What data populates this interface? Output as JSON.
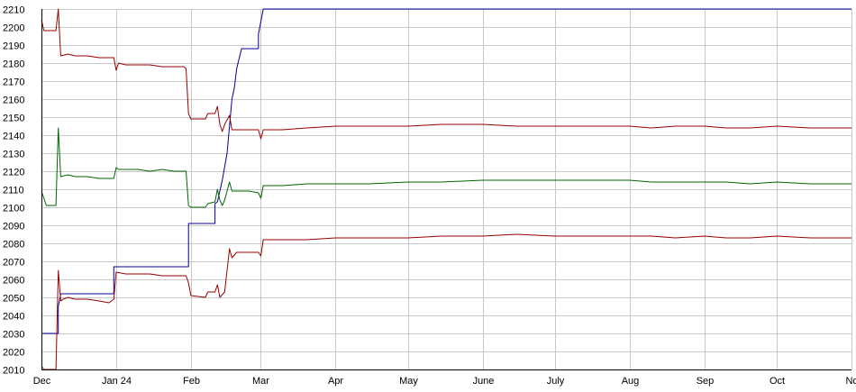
{
  "chart_data": {
    "type": "line",
    "title": "",
    "xlabel": "",
    "ylabel": "",
    "ylim": [
      2010,
      2210
    ],
    "yticks": [
      2010,
      2020,
      2030,
      2040,
      2050,
      2060,
      2070,
      2080,
      2090,
      2100,
      2110,
      2120,
      2130,
      2140,
      2150,
      2160,
      2170,
      2180,
      2190,
      2200,
      2210
    ],
    "xlim": [
      "2023-12-01",
      "2024-11-01"
    ],
    "xticks": [
      {
        "date": "2023-12-01",
        "label": "Dec"
      },
      {
        "date": "2024-01-01",
        "label": "Jan 24"
      },
      {
        "date": "2024-02-01",
        "label": "Feb"
      },
      {
        "date": "2024-03-01",
        "label": "Mar"
      },
      {
        "date": "2024-04-01",
        "label": "Apr"
      },
      {
        "date": "2024-05-01",
        "label": "May"
      },
      {
        "date": "2024-06-01",
        "label": "June"
      },
      {
        "date": "2024-07-01",
        "label": "July"
      },
      {
        "date": "2024-08-01",
        "label": "Aug"
      },
      {
        "date": "2024-09-01",
        "label": "Sep"
      },
      {
        "date": "2024-10-01",
        "label": "Oct"
      },
      {
        "date": "2024-11-01",
        "label": "No"
      }
    ],
    "grid": true,
    "legend": "none",
    "series": [
      {
        "color": "#000099",
        "points": [
          [
            "2023-12-01",
            2030
          ],
          [
            "2023-12-08",
            2030
          ],
          [
            "2023-12-08",
            2045
          ],
          [
            "2023-12-09",
            2052
          ],
          [
            "2023-12-31",
            2052
          ],
          [
            "2023-12-31",
            2067
          ],
          [
            "2024-01-31",
            2067
          ],
          [
            "2024-01-31",
            2091
          ],
          [
            "2024-02-11",
            2091
          ],
          [
            "2024-02-11",
            2102
          ],
          [
            "2024-02-12",
            2103
          ],
          [
            "2024-02-14",
            2115
          ],
          [
            "2024-02-16",
            2130
          ],
          [
            "2024-02-18",
            2160
          ],
          [
            "2024-02-19",
            2166
          ],
          [
            "2024-02-20",
            2177
          ],
          [
            "2024-02-22",
            2188
          ],
          [
            "2024-02-29",
            2188
          ],
          [
            "2024-02-29",
            2196
          ],
          [
            "2024-03-02",
            2210
          ],
          [
            "2024-11-01",
            2210
          ]
        ]
      },
      {
        "color": "#990000",
        "points": [
          [
            "2023-12-01",
            2204
          ],
          [
            "2023-12-02",
            2198
          ],
          [
            "2023-12-07",
            2198
          ],
          [
            "2023-12-08",
            2210
          ],
          [
            "2023-12-09",
            2184
          ],
          [
            "2023-12-12",
            2185
          ],
          [
            "2023-12-15",
            2184
          ],
          [
            "2023-12-20",
            2184
          ],
          [
            "2023-12-25",
            2183
          ],
          [
            "2023-12-29",
            2183
          ],
          [
            "2023-12-31",
            2183
          ],
          [
            "2024-01-01",
            2176
          ],
          [
            "2024-01-02",
            2180
          ],
          [
            "2024-01-05",
            2179
          ],
          [
            "2024-01-10",
            2179
          ],
          [
            "2024-01-15",
            2179
          ],
          [
            "2024-01-20",
            2178
          ],
          [
            "2024-01-25",
            2178
          ],
          [
            "2024-01-29",
            2178
          ],
          [
            "2024-01-30",
            2177
          ],
          [
            "2024-01-31",
            2152
          ],
          [
            "2024-02-01",
            2149
          ],
          [
            "2024-02-07",
            2149
          ],
          [
            "2024-02-08",
            2152
          ],
          [
            "2024-02-11",
            2152
          ],
          [
            "2024-02-12",
            2156
          ],
          [
            "2024-02-13",
            2146
          ],
          [
            "2024-02-14",
            2142
          ],
          [
            "2024-02-15",
            2146
          ],
          [
            "2024-02-17",
            2151
          ],
          [
            "2024-02-18",
            2143
          ],
          [
            "2024-02-25",
            2143
          ],
          [
            "2024-02-29",
            2143
          ],
          [
            "2024-03-01",
            2138
          ],
          [
            "2024-03-02",
            2143
          ],
          [
            "2024-03-10",
            2143
          ],
          [
            "2024-03-20",
            2144
          ],
          [
            "2024-04-01",
            2145
          ],
          [
            "2024-04-15",
            2145
          ],
          [
            "2024-05-01",
            2145
          ],
          [
            "2024-05-15",
            2146
          ],
          [
            "2024-06-01",
            2146
          ],
          [
            "2024-06-15",
            2145
          ],
          [
            "2024-07-01",
            2145
          ],
          [
            "2024-07-15",
            2145
          ],
          [
            "2024-08-01",
            2145
          ],
          [
            "2024-08-10",
            2144
          ],
          [
            "2024-08-20",
            2145
          ],
          [
            "2024-09-01",
            2145
          ],
          [
            "2024-09-10",
            2144
          ],
          [
            "2024-09-20",
            2144
          ],
          [
            "2024-10-01",
            2145
          ],
          [
            "2024-10-15",
            2144
          ],
          [
            "2024-11-01",
            2144
          ]
        ]
      },
      {
        "color": "#006600",
        "points": [
          [
            "2023-12-01",
            2109
          ],
          [
            "2023-12-03",
            2101
          ],
          [
            "2023-12-07",
            2101
          ],
          [
            "2023-12-08",
            2144
          ],
          [
            "2023-12-09",
            2117
          ],
          [
            "2023-12-12",
            2118
          ],
          [
            "2023-12-15",
            2117
          ],
          [
            "2023-12-20",
            2117
          ],
          [
            "2023-12-25",
            2116
          ],
          [
            "2023-12-31",
            2116
          ],
          [
            "2024-01-01",
            2122
          ],
          [
            "2024-01-02",
            2121
          ],
          [
            "2024-01-05",
            2121
          ],
          [
            "2024-01-10",
            2121
          ],
          [
            "2024-01-15",
            2120
          ],
          [
            "2024-01-20",
            2121
          ],
          [
            "2024-01-25",
            2120
          ],
          [
            "2024-01-30",
            2120
          ],
          [
            "2024-01-31",
            2101
          ],
          [
            "2024-02-01",
            2100
          ],
          [
            "2024-02-07",
            2100
          ],
          [
            "2024-02-08",
            2102
          ],
          [
            "2024-02-11",
            2103
          ],
          [
            "2024-02-12",
            2110
          ],
          [
            "2024-02-13",
            2104
          ],
          [
            "2024-02-14",
            2101
          ],
          [
            "2024-02-15",
            2104
          ],
          [
            "2024-02-17",
            2114
          ],
          [
            "2024-02-18",
            2109
          ],
          [
            "2024-02-25",
            2109
          ],
          [
            "2024-02-29",
            2108
          ],
          [
            "2024-03-01",
            2105
          ],
          [
            "2024-03-02",
            2112
          ],
          [
            "2024-03-10",
            2112
          ],
          [
            "2024-03-20",
            2113
          ],
          [
            "2024-04-01",
            2113
          ],
          [
            "2024-04-15",
            2113
          ],
          [
            "2024-05-01",
            2114
          ],
          [
            "2024-05-15",
            2114
          ],
          [
            "2024-06-01",
            2115
          ],
          [
            "2024-06-15",
            2115
          ],
          [
            "2024-07-01",
            2115
          ],
          [
            "2024-07-15",
            2115
          ],
          [
            "2024-08-01",
            2115
          ],
          [
            "2024-08-10",
            2114
          ],
          [
            "2024-08-20",
            2114
          ],
          [
            "2024-09-01",
            2114
          ],
          [
            "2024-09-10",
            2114
          ],
          [
            "2024-09-20",
            2113
          ],
          [
            "2024-10-01",
            2114
          ],
          [
            "2024-10-15",
            2113
          ],
          [
            "2024-11-01",
            2113
          ]
        ]
      },
      {
        "color": "#990000",
        "points": [
          [
            "2023-12-01",
            2012
          ],
          [
            "2023-12-02",
            2010
          ],
          [
            "2023-12-07",
            2010
          ],
          [
            "2023-12-08",
            2065
          ],
          [
            "2023-12-09",
            2048
          ],
          [
            "2023-12-10",
            2049
          ],
          [
            "2023-12-12",
            2050
          ],
          [
            "2023-12-15",
            2049
          ],
          [
            "2023-12-20",
            2049
          ],
          [
            "2023-12-25",
            2048
          ],
          [
            "2023-12-29",
            2047
          ],
          [
            "2023-12-31",
            2049
          ],
          [
            "2024-01-01",
            2064
          ],
          [
            "2024-01-05",
            2063
          ],
          [
            "2024-01-10",
            2063
          ],
          [
            "2024-01-15",
            2063
          ],
          [
            "2024-01-20",
            2062
          ],
          [
            "2024-01-25",
            2062
          ],
          [
            "2024-01-30",
            2062
          ],
          [
            "2024-01-31",
            2058
          ],
          [
            "2024-02-01",
            2051
          ],
          [
            "2024-02-07",
            2050
          ],
          [
            "2024-02-08",
            2053
          ],
          [
            "2024-02-11",
            2053
          ],
          [
            "2024-02-12",
            2057
          ],
          [
            "2024-02-13",
            2050
          ],
          [
            "2024-02-15",
            2053
          ],
          [
            "2024-02-17",
            2077
          ],
          [
            "2024-02-18",
            2072
          ],
          [
            "2024-02-20",
            2075
          ],
          [
            "2024-02-25",
            2075
          ],
          [
            "2024-02-29",
            2075
          ],
          [
            "2024-03-01",
            2073
          ],
          [
            "2024-03-02",
            2082
          ],
          [
            "2024-03-10",
            2082
          ],
          [
            "2024-03-20",
            2082
          ],
          [
            "2024-04-01",
            2083
          ],
          [
            "2024-04-15",
            2083
          ],
          [
            "2024-05-01",
            2083
          ],
          [
            "2024-05-15",
            2084
          ],
          [
            "2024-06-01",
            2084
          ],
          [
            "2024-06-15",
            2085
          ],
          [
            "2024-07-01",
            2084
          ],
          [
            "2024-07-15",
            2084
          ],
          [
            "2024-08-01",
            2084
          ],
          [
            "2024-08-10",
            2084
          ],
          [
            "2024-08-20",
            2083
          ],
          [
            "2024-09-01",
            2084
          ],
          [
            "2024-09-10",
            2083
          ],
          [
            "2024-09-20",
            2083
          ],
          [
            "2024-10-01",
            2084
          ],
          [
            "2024-10-15",
            2083
          ],
          [
            "2024-11-01",
            2083
          ]
        ]
      }
    ]
  }
}
